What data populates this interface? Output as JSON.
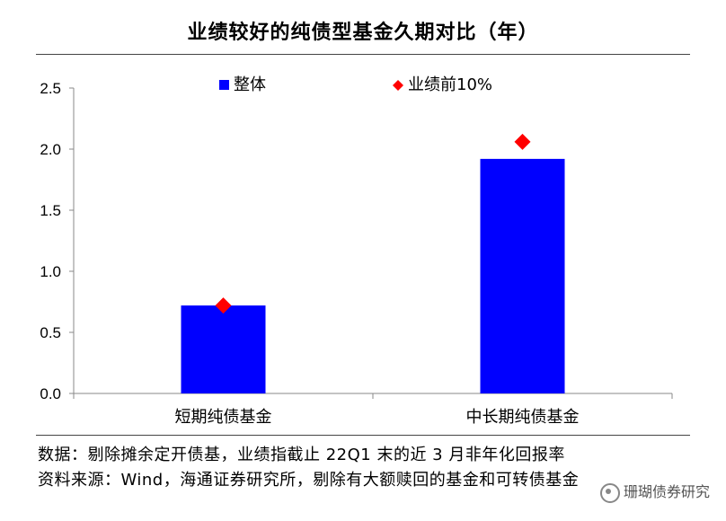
{
  "chart_data": {
    "type": "bar",
    "title": "业绩较好的纯债型基金久期对比（年）",
    "categories": [
      "短期纯债基金",
      "中长期纯债基金"
    ],
    "series": [
      {
        "name": "整体",
        "kind": "bar",
        "color": "#0000FF",
        "values": [
          0.72,
          1.92
        ]
      },
      {
        "name": "业绩前10%",
        "kind": "marker",
        "marker": "diamond",
        "color": "#FF0000",
        "values": [
          0.72,
          2.06
        ]
      }
    ],
    "ylim": [
      0,
      2.5
    ],
    "yticks": [
      "0.0",
      "0.5",
      "1.0",
      "1.5",
      "2.0",
      "2.5"
    ],
    "xlabel": "",
    "ylabel": "",
    "grid": false,
    "legend_position": "top"
  },
  "notes": {
    "line1": "数据：剔除摊余定开债基，业绩指截止 22Q1 末的近 3 月非年化回报率",
    "line2": "资料来源：Wind，海通证券研究所，剔除有大额赎回的基金和可转债基金"
  },
  "watermark": "珊瑚债券研究"
}
